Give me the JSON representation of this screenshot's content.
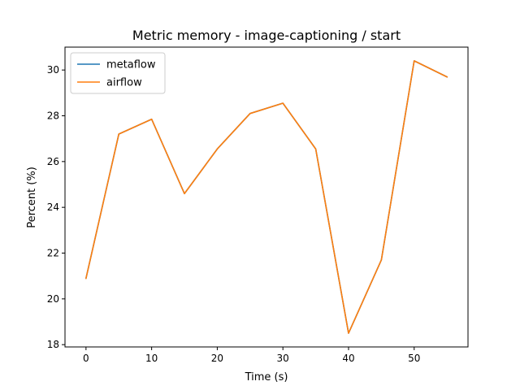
{
  "chart_data": {
    "type": "line",
    "title": "Metric memory - image-captioning / start",
    "xlabel": "Time (s)",
    "ylabel": "Percent (%)",
    "x": [
      0,
      5,
      10,
      15,
      20,
      25,
      30,
      35,
      40,
      45,
      50,
      55
    ],
    "xlim": [
      -3.2,
      58.2
    ],
    "ylim": [
      17.9,
      31.0
    ],
    "xticks": [
      0,
      10,
      20,
      30,
      40,
      50
    ],
    "yticks": [
      18,
      20,
      22,
      24,
      26,
      28,
      30
    ],
    "grid": false,
    "legend_position": "top-left",
    "series": [
      {
        "name": "metaflow",
        "color": "#1f77b4",
        "values": [
          20.9,
          27.2,
          27.85,
          24.6,
          26.55,
          28.1,
          28.55,
          26.55,
          18.5,
          21.7,
          30.4,
          29.7
        ]
      },
      {
        "name": "airflow",
        "color": "#ff7f0e",
        "values": [
          20.9,
          27.2,
          27.85,
          24.6,
          26.55,
          28.1,
          28.55,
          26.55,
          18.5,
          21.7,
          30.4,
          29.7
        ]
      }
    ]
  }
}
